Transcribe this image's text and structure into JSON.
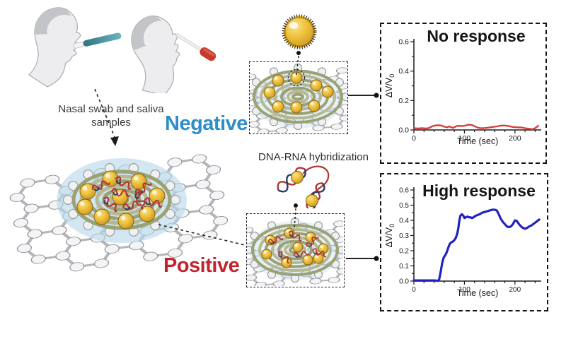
{
  "figure": {
    "caption": {
      "line1": "Nasal swab and saliva",
      "line2": "samples"
    },
    "negative_label": "Negative",
    "positive_label": "Positive",
    "hybridization_label": "DNA-RNA hybridization"
  },
  "colors": {
    "negative_text": "#2e8ec7",
    "positive_text": "#c2242c",
    "no_response_line": "#d4403c",
    "high_response_line": "#2222c2",
    "gold_particle": "#f0c23d",
    "coil_dark": "#9aa172",
    "coil_light": "#b6b892",
    "glow_blue": "#b7d8ea"
  },
  "chart_data": [
    {
      "id": "chart-no-response",
      "type": "line",
      "title": "No response",
      "xlabel": "Time (sec)",
      "ylabel_main": "ΔV/V",
      "ylabel_sub": "0",
      "xlim": [
        0,
        252
      ],
      "ylim": [
        0,
        0.6
      ],
      "xticks": [
        0,
        100,
        200
      ],
      "xminor": 20,
      "yticks": [
        0,
        0.2,
        0.4,
        0.6
      ],
      "ytick_labels": [
        "0.0",
        "0.2",
        "0.4",
        "0.6"
      ],
      "yminor": 0.1,
      "line_color": "#d4403c",
      "line_width": 2.4,
      "x": [
        0,
        8,
        16,
        24,
        30,
        36,
        42,
        48,
        54,
        60,
        66,
        70,
        74,
        78,
        84,
        90,
        96,
        102,
        108,
        114,
        120,
        126,
        132,
        140,
        148,
        156,
        164,
        172,
        180,
        188,
        196,
        204,
        212,
        220,
        228,
        234,
        240,
        246
      ],
      "y": [
        0.012,
        0.01,
        0.012,
        0.01,
        0.013,
        0.025,
        0.03,
        0.032,
        0.03,
        0.022,
        0.018,
        0.024,
        0.018,
        0.014,
        0.026,
        0.028,
        0.026,
        0.03,
        0.036,
        0.034,
        0.026,
        0.016,
        0.012,
        0.013,
        0.016,
        0.02,
        0.024,
        0.029,
        0.03,
        0.026,
        0.02,
        0.018,
        0.017,
        0.012,
        0.008,
        0.005,
        0.012,
        0.028
      ]
    },
    {
      "id": "chart-high-response",
      "type": "line",
      "title": "High response",
      "xlabel": "Time (sec)",
      "ylabel_main": "ΔV/V",
      "ylabel_sub": "0",
      "xlim": [
        0,
        252
      ],
      "ylim": [
        0,
        0.6
      ],
      "xticks": [
        0,
        100,
        200
      ],
      "xminor": 20,
      "yticks": [
        0,
        0.1,
        0.2,
        0.3,
        0.4,
        0.5,
        0.6
      ],
      "ytick_labels": [
        "0.0",
        "0.1",
        "0.2",
        "0.3",
        "0.4",
        "0.5",
        "0.6"
      ],
      "yminor": 0.05,
      "line_color": "#2222c2",
      "line_width": 3.2,
      "x": [
        0,
        10,
        20,
        30,
        40,
        47,
        50,
        53,
        56,
        59,
        62,
        65,
        68,
        71,
        74,
        77,
        80,
        83,
        86,
        88,
        90,
        92,
        95,
        98,
        100,
        103,
        106,
        109,
        112,
        115,
        118,
        122,
        126,
        130,
        135,
        140,
        145,
        150,
        155,
        160,
        164,
        168,
        172,
        176,
        180,
        184,
        188,
        192,
        196,
        200,
        204,
        208,
        212,
        216,
        220,
        224,
        228,
        232,
        236,
        240,
        244,
        248
      ],
      "y": [
        0.004,
        0.004,
        0.004,
        0.004,
        0.004,
        0.002,
        0.01,
        0.06,
        0.12,
        0.155,
        0.17,
        0.19,
        0.22,
        0.245,
        0.255,
        0.26,
        0.27,
        0.285,
        0.315,
        0.35,
        0.4,
        0.43,
        0.44,
        0.43,
        0.415,
        0.42,
        0.425,
        0.42,
        0.42,
        0.415,
        0.42,
        0.43,
        0.435,
        0.44,
        0.45,
        0.455,
        0.46,
        0.465,
        0.47,
        0.47,
        0.465,
        0.44,
        0.41,
        0.39,
        0.375,
        0.36,
        0.355,
        0.36,
        0.375,
        0.4,
        0.395,
        0.375,
        0.36,
        0.35,
        0.345,
        0.35,
        0.36,
        0.365,
        0.375,
        0.385,
        0.395,
        0.405
      ]
    }
  ]
}
